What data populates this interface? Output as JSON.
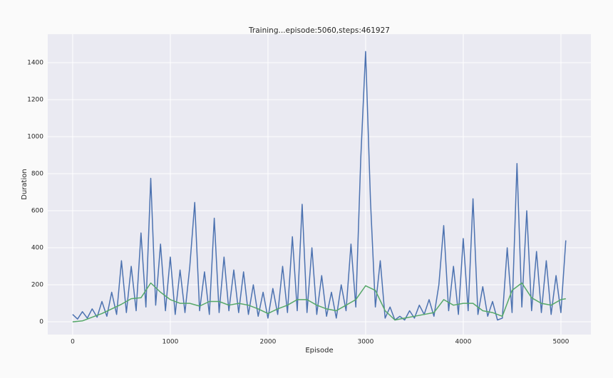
{
  "chart_data": {
    "type": "line",
    "title": "Training...episode:5060,steps:461927",
    "xlabel": "Episode",
    "ylabel": "Duration",
    "xlim": [
      -255,
      5307
    ],
    "ylim": [
      -69,
      1554
    ],
    "xticks": [
      0,
      1000,
      2000,
      3000,
      4000,
      5000
    ],
    "yticks": [
      0,
      200,
      400,
      600,
      800,
      1000,
      1200,
      1400
    ],
    "grid": true,
    "series": [
      {
        "color": "#4c72b0",
        "x": [
          0,
          50,
          100,
          150,
          200,
          250,
          300,
          350,
          400,
          450,
          500,
          550,
          600,
          650,
          700,
          750,
          800,
          850,
          900,
          950,
          1000,
          1050,
          1100,
          1150,
          1200,
          1250,
          1300,
          1350,
          1400,
          1450,
          1500,
          1550,
          1600,
          1650,
          1700,
          1750,
          1800,
          1850,
          1900,
          1950,
          2000,
          2050,
          2100,
          2150,
          2200,
          2250,
          2300,
          2350,
          2400,
          2450,
          2500,
          2550,
          2600,
          2650,
          2700,
          2750,
          2800,
          2850,
          2900,
          2950,
          3000,
          3050,
          3100,
          3150,
          3200,
          3250,
          3300,
          3350,
          3400,
          3450,
          3500,
          3550,
          3600,
          3650,
          3700,
          3750,
          3800,
          3850,
          3900,
          3950,
          4000,
          4050,
          4100,
          4150,
          4200,
          4250,
          4300,
          4350,
          4400,
          4450,
          4500,
          4550,
          4600,
          4650,
          4700,
          4750,
          4800,
          4850,
          4900,
          4950,
          5000,
          5050
        ],
        "values": [
          40,
          15,
          55,
          20,
          70,
          25,
          110,
          30,
          160,
          40,
          330,
          50,
          300,
          60,
          480,
          80,
          775,
          90,
          420,
          60,
          350,
          40,
          280,
          50,
          300,
          645,
          60,
          270,
          40,
          560,
          50,
          350,
          60,
          280,
          50,
          270,
          40,
          200,
          30,
          160,
          20,
          180,
          40,
          300,
          50,
          460,
          60,
          635,
          50,
          400,
          40,
          250,
          30,
          160,
          20,
          200,
          60,
          420,
          80,
          880,
          1460,
          650,
          80,
          330,
          20,
          80,
          10,
          30,
          10,
          60,
          20,
          90,
          40,
          120,
          30,
          200,
          520,
          60,
          300,
          40,
          450,
          60,
          665,
          40,
          190,
          30,
          110,
          10,
          20,
          400,
          50,
          855,
          80,
          600,
          60,
          380,
          50,
          330,
          40,
          250,
          50,
          440
        ]
      },
      {
        "color": "#55a868",
        "x": [
          0,
          100,
          200,
          300,
          400,
          500,
          600,
          700,
          800,
          900,
          1000,
          1100,
          1200,
          1300,
          1400,
          1500,
          1600,
          1700,
          1800,
          1900,
          2000,
          2100,
          2200,
          2300,
          2400,
          2500,
          2600,
          2700,
          2800,
          2900,
          3000,
          3100,
          3200,
          3300,
          3400,
          3500,
          3600,
          3700,
          3800,
          3900,
          4000,
          4100,
          4200,
          4300,
          4400,
          4500,
          4600,
          4700,
          4800,
          4900,
          5000,
          5050
        ],
        "values": [
          0,
          5,
          25,
          45,
          70,
          95,
          125,
          130,
          210,
          160,
          120,
          100,
          100,
          85,
          110,
          110,
          90,
          100,
          90,
          70,
          45,
          70,
          90,
          120,
          120,
          90,
          70,
          60,
          90,
          120,
          195,
          170,
          60,
          10,
          20,
          30,
          40,
          50,
          120,
          90,
          100,
          100,
          60,
          50,
          30,
          170,
          210,
          130,
          100,
          90,
          120,
          125
        ]
      }
    ]
  }
}
